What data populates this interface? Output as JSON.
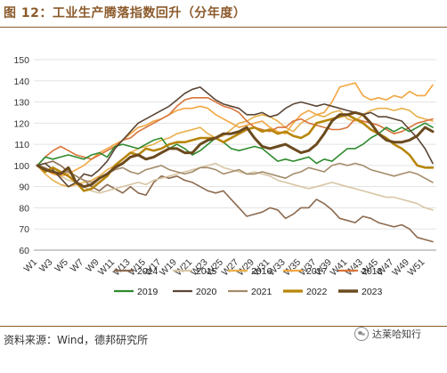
{
  "figure": {
    "title": "图 12：工业生产腾落指数回升（分年度）",
    "source": "资料来源：Wind，德邦研究所",
    "watermark": "达莱哈知行",
    "watermark_icon": "wechat-icon"
  },
  "chart_data": {
    "type": "line",
    "title": "",
    "xlabel": "",
    "ylabel": "",
    "ylim": [
      60,
      150
    ],
    "yticks": [
      60,
      70,
      80,
      90,
      100,
      110,
      120,
      130,
      140,
      150
    ],
    "x": [
      "W1",
      "W2",
      "W3",
      "W4",
      "W5",
      "W6",
      "W7",
      "W8",
      "W9",
      "W10",
      "W11",
      "W12",
      "W13",
      "W14",
      "W15",
      "W16",
      "W17",
      "W18",
      "W19",
      "W20",
      "W21",
      "W22",
      "W23",
      "W24",
      "W25",
      "W26",
      "W27",
      "W28",
      "W29",
      "W30",
      "W31",
      "W32",
      "W33",
      "W34",
      "W35",
      "W36",
      "W37",
      "W38",
      "W39",
      "W40",
      "W41",
      "W42",
      "W43",
      "W44",
      "W45",
      "W46",
      "W47",
      "W48",
      "W49",
      "W50",
      "W51",
      "W52"
    ],
    "xtick_labels": [
      "W1",
      "W3",
      "W5",
      "W7",
      "W9",
      "W11",
      "W13",
      "W15",
      "W17",
      "W19",
      "W21",
      "W23",
      "W25",
      "W27",
      "W29",
      "W31",
      "W33",
      "W35",
      "W37",
      "W39",
      "W41",
      "W43",
      "W45",
      "W47",
      "W49",
      "W51"
    ],
    "grid": "horizontal",
    "legend_position": "bottom",
    "series": [
      {
        "name": "2014",
        "color": "#8C6A4F",
        "width": 1.6,
        "values": [
          100,
          101,
          102,
          100,
          97,
          95,
          93,
          90,
          88,
          91,
          89,
          87,
          90,
          87,
          86,
          92,
          95,
          94,
          95,
          93,
          92,
          90,
          88,
          87,
          88,
          84,
          80,
          76,
          77,
          78,
          80,
          79,
          75,
          77,
          80,
          80,
          84,
          82,
          79,
          75,
          74,
          73,
          76,
          75,
          73,
          72,
          71,
          72,
          70,
          66,
          65,
          64
        ]
      },
      {
        "name": "2015",
        "color": "#D8C6A6",
        "width": 1.6,
        "values": [
          100,
          98,
          96,
          95,
          93,
          92,
          90,
          88,
          87,
          88,
          89,
          90,
          91,
          92,
          91,
          93,
          94,
          95,
          96,
          97,
          98,
          99,
          100,
          101,
          99,
          98,
          97,
          96,
          97,
          96,
          95,
          93,
          92,
          91,
          90,
          89,
          90,
          91,
          92,
          91,
          90,
          89,
          88,
          87,
          86,
          85,
          85,
          84,
          83,
          82,
          80,
          79
        ]
      },
      {
        "name": "2016",
        "color": "#E8B04A",
        "width": 1.6,
        "values": [
          100,
          96,
          93,
          91,
          90,
          91,
          92,
          93,
          95,
          98,
          100,
          103,
          106,
          108,
          109,
          110,
          112,
          113,
          115,
          116,
          117,
          118,
          115,
          113,
          114,
          117,
          120,
          121,
          123,
          124,
          123,
          121,
          118,
          116,
          120,
          122,
          124,
          123,
          125,
          126,
          122,
          121,
          124,
          126,
          127,
          127,
          126,
          127,
          126,
          123,
          122,
          121
        ]
      },
      {
        "name": "2017",
        "color": "#F2A641",
        "width": 1.6,
        "values": [
          100,
          98,
          96,
          95,
          96,
          98,
          100,
          103,
          106,
          108,
          110,
          112,
          115,
          118,
          119,
          121,
          122,
          124,
          126,
          127,
          127,
          128,
          127,
          124,
          122,
          120,
          118,
          119,
          120,
          121,
          118,
          116,
          115,
          120,
          124,
          126,
          124,
          125,
          130,
          137,
          138,
          139,
          133,
          131,
          132,
          131,
          133,
          132,
          135,
          133,
          133,
          138
        ]
      },
      {
        "name": "2018",
        "color": "#D9743A",
        "width": 1.6,
        "values": [
          100,
          104,
          107,
          109,
          107,
          105,
          104,
          103,
          105,
          107,
          109,
          112,
          113,
          116,
          118,
          120,
          122,
          124,
          128,
          131,
          132,
          132,
          132,
          130,
          128,
          127,
          125,
          121,
          118,
          117,
          116,
          118,
          118,
          121,
          122,
          120,
          119,
          118,
          117,
          117,
          118,
          122,
          121,
          120,
          119,
          117,
          115,
          116,
          118,
          120,
          121,
          122
        ]
      },
      {
        "name": "2019",
        "color": "#2E8B2E",
        "width": 1.6,
        "values": [
          100,
          104,
          103,
          104,
          105,
          104,
          103,
          105,
          106,
          104,
          109,
          110,
          109,
          108,
          110,
          112,
          113,
          108,
          110,
          108,
          105,
          107,
          110,
          113,
          111,
          108,
          107,
          108,
          109,
          108,
          105,
          102,
          103,
          102,
          103,
          104,
          101,
          103,
          102,
          105,
          108,
          108,
          110,
          113,
          115,
          118,
          116,
          118,
          116,
          118,
          120,
          118
        ]
      },
      {
        "name": "2020",
        "color": "#5B4636",
        "width": 1.6,
        "values": [
          100,
          101,
          98,
          94,
          90,
          92,
          96,
          95,
          98,
          102,
          108,
          112,
          116,
          120,
          122,
          124,
          126,
          128,
          131,
          134,
          136,
          137,
          134,
          131,
          129,
          128,
          127,
          124,
          124,
          125,
          123,
          124,
          127,
          129,
          130,
          129,
          128,
          129,
          128,
          127,
          126,
          125,
          124,
          125,
          123,
          123,
          122,
          121,
          117,
          113,
          108,
          101
        ]
      },
      {
        "name": "2021",
        "color": "#A38B6B",
        "width": 1.6,
        "values": [
          100,
          99,
          97,
          96,
          97,
          95,
          93,
          92,
          94,
          96,
          98,
          99,
          97,
          96,
          98,
          99,
          100,
          98,
          97,
          96,
          97,
          99,
          99,
          98,
          96,
          97,
          98,
          96,
          96,
          97,
          96,
          95,
          94,
          96,
          97,
          99,
          98,
          97,
          100,
          101,
          100,
          101,
          100,
          98,
          97,
          96,
          95,
          96,
          97,
          96,
          94,
          92
        ]
      },
      {
        "name": "2022",
        "color": "#B8860B",
        "width": 2.6,
        "values": [
          100,
          97,
          99,
          97,
          95,
          92,
          88,
          89,
          92,
          95,
          100,
          103,
          106,
          105,
          108,
          107,
          108,
          110,
          111,
          111,
          112,
          113,
          113,
          113,
          111,
          113,
          115,
          117,
          118,
          116,
          117,
          115,
          116,
          114,
          113,
          115,
          120,
          121,
          122,
          123,
          124,
          122,
          120,
          117,
          115,
          113,
          110,
          108,
          105,
          100,
          99,
          99
        ]
      },
      {
        "name": "2023",
        "color": "#6B4A1E",
        "width": 3.0,
        "values": [
          100,
          98,
          97,
          96,
          99,
          92,
          90,
          91,
          94,
          96,
          99,
          101,
          104,
          105,
          103,
          104,
          106,
          108,
          108,
          106,
          106,
          110,
          112,
          113,
          115,
          115,
          116,
          118,
          113,
          109,
          108,
          109,
          110,
          108,
          106,
          107,
          110,
          115,
          121,
          124,
          124,
          125,
          124,
          120,
          115,
          112,
          111,
          111,
          112,
          114,
          118,
          116
        ]
      }
    ]
  }
}
